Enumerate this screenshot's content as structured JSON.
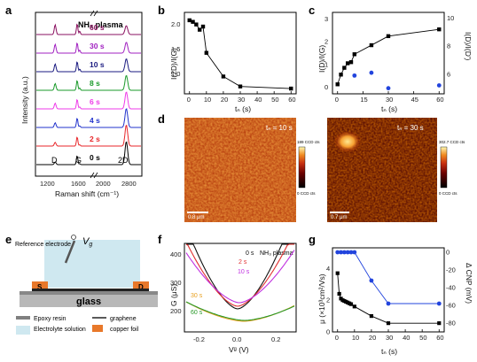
{
  "panels": {
    "a": {
      "label": "a",
      "title": "NH₃ plasma",
      "xlabel": "Raman shift (cm⁻¹)",
      "ylabel": "Intensity (a.u.)",
      "xticks": [
        "1200",
        "1600",
        "2000",
        "2800"
      ],
      "peaks": {
        "D": "D",
        "G": "G",
        "2D": "2D"
      },
      "traces": [
        {
          "label": "0 s",
          "color": "#000000"
        },
        {
          "label": "2 s",
          "color": "#e8262a"
        },
        {
          "label": "4 s",
          "color": "#2233cc"
        },
        {
          "label": "6 s",
          "color": "#ee3be8"
        },
        {
          "label": "8 s",
          "color": "#1a9a2a"
        },
        {
          "label": "10 s",
          "color": "#1a1a80"
        },
        {
          "label": "30 s",
          "color": "#a020c0"
        },
        {
          "label": "60 s",
          "color": "#8a1060"
        }
      ]
    },
    "b": {
      "label": "b",
      "ylabel": "I(2D)/I(G)",
      "xlabel": "tₙ (s)",
      "yticks": [
        "1.0",
        "1.5",
        "2.0"
      ],
      "xticks": [
        "0",
        "10",
        "20",
        "30",
        "40",
        "50",
        "60"
      ]
    },
    "c": {
      "label": "c",
      "ylabel_left": "I(D)/I(G)",
      "ylabel_right": "I(D)/I(D′)",
      "xlabel": "tₙ (s)",
      "yticks_left": [
        "0",
        "1",
        "2",
        "3"
      ],
      "yticks_right": [
        "6",
        "8",
        "10"
      ],
      "xticks": [
        "0",
        "15",
        "30",
        "45",
        "60"
      ]
    },
    "d": {
      "label": "d",
      "map1": {
        "tag": "tₙ = 10 s",
        "scale_top": "189 CCD cts",
        "scale_bottom": "0 CCD cts",
        "scalebar": "0.8 μm"
      },
      "map2": {
        "tag": "tₙ = 30 s",
        "scale_top": "302.7 CCD cts",
        "scale_bottom": "0 CCD cts",
        "scalebar": "0.7 μm"
      }
    },
    "e": {
      "label": "e",
      "ref_electrode": "Reference electrode",
      "vg": "V",
      "vg_sub": "g",
      "source": "S",
      "drain": "D",
      "substrate": "glass",
      "legend": [
        {
          "label": "Epoxy resin",
          "color": "#808080"
        },
        {
          "label": "graphene",
          "color": "#222222"
        },
        {
          "label": "Electrolyte solution",
          "color": "#cfe8f0"
        },
        {
          "label": "copper foil",
          "color": "#e8782a"
        }
      ]
    },
    "f": {
      "label": "f",
      "ylabel": "G (μS)",
      "xlabel": "Vᵍ (V)",
      "title": "NH₃ plasma",
      "yticks": [
        "200",
        "300",
        "400"
      ],
      "xticks": [
        "-0.2",
        "0.0",
        "0.2"
      ],
      "curves": [
        {
          "label": "0 s",
          "color": "#111111"
        },
        {
          "label": "2 s",
          "color": "#e03030"
        },
        {
          "label": "10 s",
          "color": "#c030e0"
        },
        {
          "label": "30 s",
          "color": "#e8a020"
        },
        {
          "label": "60 s",
          "color": "#2a9a2a"
        }
      ]
    },
    "g": {
      "label": "g",
      "ylabel_left": "μ (×10³cm²/Vs)",
      "ylabel_right": "Δ CNP (mV)",
      "xlabel": "tₙ (s)",
      "yticks_left": [
        "0",
        "2",
        "4"
      ],
      "yticks_right": [
        "0",
        "-20",
        "-40",
        "-60",
        "-80"
      ],
      "xticks": [
        "0",
        "10",
        "20",
        "30",
        "40",
        "50",
        "60"
      ]
    }
  },
  "chart_data": [
    {
      "type": "line",
      "panel": "b",
      "xlabel": "tₙ (s)",
      "ylabel": "I(2D)/I(G)",
      "xlim": [
        -3,
        63
      ],
      "ylim": [
        0.6,
        2.15
      ],
      "series": [
        {
          "x": [
            0,
            2,
            4,
            6,
            8,
            10,
            20,
            30,
            60
          ],
          "values": [
            2.0,
            1.97,
            1.92,
            1.82,
            1.88,
            1.38,
            0.93,
            0.74,
            0.7
          ]
        }
      ]
    },
    {
      "type": "line",
      "panel": "c",
      "xlabel": "tₙ (s)",
      "ylabel": "I(D)/I(G)",
      "xlim": [
        -3,
        63
      ],
      "ylim": [
        -0.3,
        3.3
      ],
      "series": [
        {
          "x": [
            0,
            2,
            4,
            6,
            8,
            10,
            20,
            30,
            60
          ],
          "values": [
            0.12,
            0.55,
            0.85,
            1.05,
            1.1,
            1.45,
            1.85,
            2.25,
            2.55
          ]
        }
      ]
    },
    {
      "type": "scatter",
      "panel": "c",
      "ylabel": "I(D)/I(D′)",
      "ylim": [
        4.6,
        10.4
      ],
      "series": [
        {
          "x": [
            10,
            20,
            30,
            60
          ],
          "values": [
            5.9,
            6.1,
            5.0,
            5.2
          ]
        }
      ]
    },
    {
      "type": "line",
      "panel": "g",
      "xlabel": "tₙ (s)",
      "ylabel": "μ (×10³cm²/Vs)",
      "xlim": [
        -3,
        63
      ],
      "ylim": [
        0,
        5.3
      ],
      "series": [
        {
          "x": [
            0,
            1,
            2,
            3,
            4,
            5,
            6,
            7,
            8,
            10,
            20,
            30,
            60
          ],
          "values": [
            3.7,
            2.4,
            2.1,
            2.0,
            1.95,
            1.9,
            1.85,
            1.8,
            1.75,
            1.6,
            1.0,
            0.55,
            0.55
          ]
        }
      ]
    },
    {
      "type": "line",
      "panel": "g",
      "ylabel": "Δ CNP (mV)",
      "ylim": [
        -90,
        5
      ],
      "series": [
        {
          "x": [
            0,
            2,
            4,
            6,
            8,
            10,
            20,
            30,
            60
          ],
          "values": [
            0,
            0,
            0,
            0,
            0,
            0,
            -32,
            -58,
            -58
          ]
        }
      ]
    }
  ]
}
